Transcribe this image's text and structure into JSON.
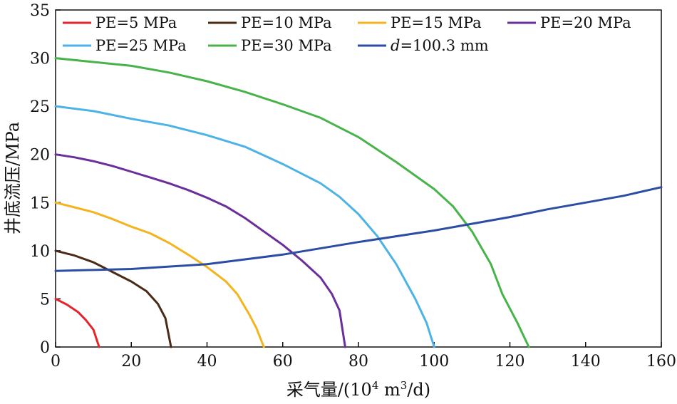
{
  "chart_data": {
    "type": "line",
    "xlabel": "采气量/(10⁴ m³/d)",
    "ylabel": "井底流压/MPa",
    "xlim": [
      0,
      160
    ],
    "ylim": [
      0,
      35
    ],
    "xticks": [
      0,
      20,
      40,
      60,
      80,
      100,
      120,
      140,
      160
    ],
    "yticks": [
      0,
      5,
      10,
      15,
      20,
      25,
      30,
      35
    ],
    "grid": false,
    "legend_position": "top-left",
    "series": [
      {
        "name": "PE=5 MPa",
        "color": "#e3262c",
        "points": [
          [
            0,
            5.0
          ],
          [
            3,
            4.4
          ],
          [
            6,
            3.6
          ],
          [
            8,
            2.8
          ],
          [
            10,
            1.8
          ],
          [
            11.5,
            0
          ]
        ]
      },
      {
        "name": "PE=10 MPa",
        "color": "#4a2b17",
        "points": [
          [
            0,
            10.0
          ],
          [
            5,
            9.5
          ],
          [
            10,
            8.8
          ],
          [
            15,
            7.8
          ],
          [
            20,
            6.8
          ],
          [
            24,
            5.8
          ],
          [
            27,
            4.5
          ],
          [
            29,
            3.0
          ],
          [
            30.5,
            0
          ]
        ]
      },
      {
        "name": "PE=15 MPa",
        "color": "#f3b41f",
        "points": [
          [
            0,
            15.0
          ],
          [
            5,
            14.5
          ],
          [
            10,
            14.0
          ],
          [
            15,
            13.3
          ],
          [
            20,
            12.5
          ],
          [
            25,
            11.8
          ],
          [
            30,
            10.8
          ],
          [
            35,
            9.6
          ],
          [
            40,
            8.3
          ],
          [
            45,
            6.8
          ],
          [
            48,
            5.5
          ],
          [
            51,
            3.5
          ],
          [
            53,
            2.0
          ],
          [
            55,
            0
          ]
        ]
      },
      {
        "name": "PE=20 MPa",
        "color": "#6a2f9a",
        "points": [
          [
            0,
            20.0
          ],
          [
            5,
            19.7
          ],
          [
            10,
            19.3
          ],
          [
            15,
            18.8
          ],
          [
            20,
            18.2
          ],
          [
            25,
            17.6
          ],
          [
            30,
            17.0
          ],
          [
            35,
            16.3
          ],
          [
            40,
            15.5
          ],
          [
            45,
            14.6
          ],
          [
            50,
            13.4
          ],
          [
            55,
            12.0
          ],
          [
            60,
            10.6
          ],
          [
            65,
            9.0
          ],
          [
            70,
            7.2
          ],
          [
            73,
            5.5
          ],
          [
            75,
            3.8
          ],
          [
            76.5,
            0
          ]
        ]
      },
      {
        "name": "PE=25 MPa",
        "color": "#4db3e6",
        "points": [
          [
            0,
            25.0
          ],
          [
            10,
            24.5
          ],
          [
            20,
            23.7
          ],
          [
            30,
            23.0
          ],
          [
            40,
            22.0
          ],
          [
            50,
            20.8
          ],
          [
            60,
            19.0
          ],
          [
            70,
            17.0
          ],
          [
            75,
            15.6
          ],
          [
            80,
            13.8
          ],
          [
            85,
            11.5
          ],
          [
            90,
            8.6
          ],
          [
            95,
            5.0
          ],
          [
            98,
            2.5
          ],
          [
            100,
            0
          ]
        ]
      },
      {
        "name": "PE=30 MPa",
        "color": "#48b34a",
        "points": [
          [
            0,
            30.0
          ],
          [
            10,
            29.6
          ],
          [
            20,
            29.2
          ],
          [
            30,
            28.5
          ],
          [
            40,
            27.6
          ],
          [
            50,
            26.5
          ],
          [
            60,
            25.2
          ],
          [
            70,
            23.8
          ],
          [
            80,
            21.8
          ],
          [
            90,
            19.2
          ],
          [
            100,
            16.4
          ],
          [
            105,
            14.6
          ],
          [
            110,
            12.0
          ],
          [
            115,
            8.6
          ],
          [
            118,
            5.5
          ],
          [
            122,
            2.5
          ],
          [
            125,
            0
          ]
        ]
      },
      {
        "name": "d=100.3 mm",
        "color": "#2b4da3",
        "points": [
          [
            0,
            7.9
          ],
          [
            20,
            8.1
          ],
          [
            40,
            8.6
          ],
          [
            60,
            9.6
          ],
          [
            80,
            10.9
          ],
          [
            100,
            12.1
          ],
          [
            120,
            13.5
          ],
          [
            130,
            14.3
          ],
          [
            140,
            15.0
          ],
          [
            150,
            15.7
          ],
          [
            160,
            16.6
          ]
        ]
      }
    ]
  },
  "legend": {
    "items": [
      {
        "text": "PE=5 MPa",
        "color": "#e3262c"
      },
      {
        "text": "PE=10 MPa",
        "color": "#4a2b17"
      },
      {
        "text": "PE=15 MPa",
        "color": "#f3b41f"
      },
      {
        "text": "PE=20 MPa",
        "color": "#6a2f9a"
      },
      {
        "text": "PE=25 MPa",
        "color": "#4db3e6"
      },
      {
        "text": "PE=30 MPa",
        "color": "#48b34a"
      },
      {
        "text": "d=100.3 mm",
        "color": "#2b4da3"
      }
    ]
  },
  "axes": {
    "xlabel_main": "采气量/(10",
    "xlabel_sup1": "4",
    "xlabel_mid": " m",
    "xlabel_sup2": "3",
    "xlabel_end": "/d)",
    "ylabel": "井底流压/MPa"
  }
}
